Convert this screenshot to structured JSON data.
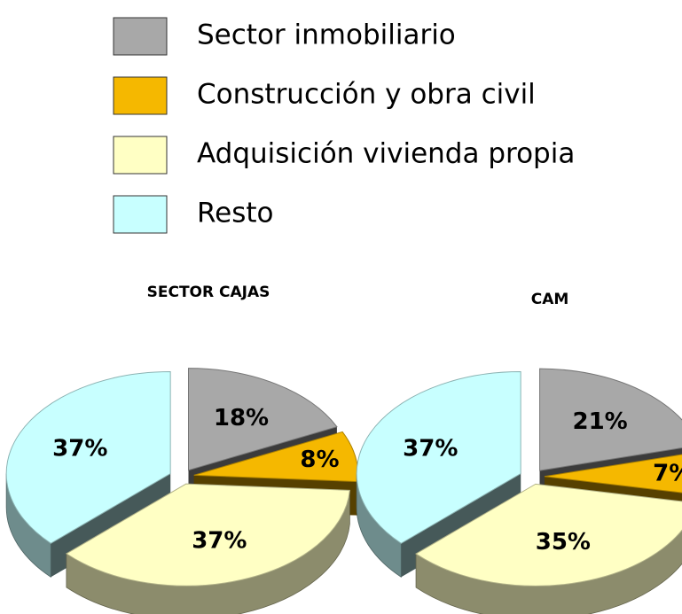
{
  "legend": {
    "labels": [
      "Sector inmobiliario",
      "Construcción y obra civil",
      "Adquisición vivienda propia",
      "Resto"
    ],
    "colors": [
      "#a8a8a8",
      "#f5b800",
      "#ffffc4",
      "#c8ffff"
    ]
  },
  "chart_data": [
    {
      "type": "pie",
      "title": "SECTOR CAJAS",
      "values": [
        18,
        8,
        37,
        37
      ],
      "value_labels": [
        "18%",
        "8%",
        "37%",
        "37%"
      ]
    },
    {
      "type": "pie",
      "title": "CAM",
      "values": [
        21,
        7,
        35,
        37
      ],
      "value_labels": [
        "21%",
        "7%",
        "35%",
        "37%"
      ]
    }
  ]
}
